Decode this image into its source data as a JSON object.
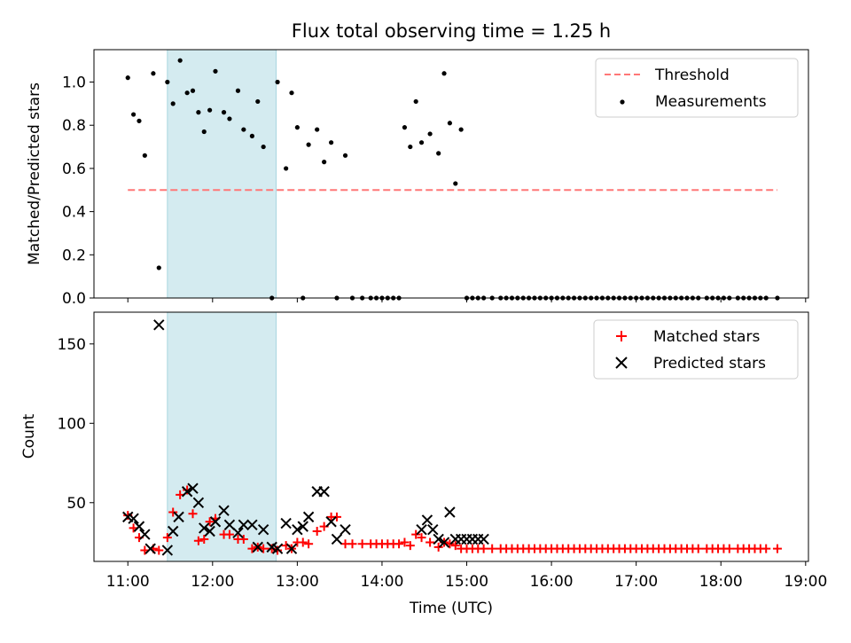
{
  "chart_data": [
    {
      "type": "scatter",
      "title": "Flux total observing time = 1.25 h",
      "xlabel": "",
      "ylabel": "Matched/Predicted stars",
      "xlim": [
        "10:36",
        "19:02"
      ],
      "ylim": [
        0,
        1.15
      ],
      "x_ticks": [
        "11:00",
        "12:00",
        "13:00",
        "14:00",
        "15:00",
        "16:00",
        "17:00",
        "18:00",
        "19:00"
      ],
      "y_ticks": [
        "0.0",
        "0.2",
        "0.4",
        "0.6",
        "0.8",
        "1.0"
      ],
      "y_tick_values": [
        0,
        0.2,
        0.4,
        0.6,
        0.8,
        1.0
      ],
      "shaded_interval": [
        "11:28",
        "12:45"
      ],
      "shaded_color": "#d4ebf0",
      "legend_position": "top-right",
      "threshold": {
        "name": "Threshold",
        "value": 0.5,
        "x_range": [
          "11:00",
          "18:40"
        ],
        "color": "#ff7777"
      },
      "series": [
        {
          "name": "Measurements",
          "color": "#000000",
          "x": [
            "11:00",
            "11:04",
            "11:08",
            "11:12",
            "11:18",
            "11:22",
            "11:28",
            "11:32",
            "11:37",
            "11:42",
            "11:46",
            "11:50",
            "11:54",
            "11:58",
            "12:02",
            "12:08",
            "12:12",
            "12:18",
            "12:22",
            "12:28",
            "12:32",
            "12:36",
            "12:42",
            "12:46",
            "12:52",
            "12:56",
            "13:00",
            "13:04",
            "13:08",
            "13:14",
            "13:19",
            "13:24",
            "13:28",
            "13:34",
            "13:39",
            "13:46",
            "13:52",
            "13:56",
            "14:00",
            "14:04",
            "14:08",
            "14:12",
            "14:16",
            "14:20",
            "14:24",
            "14:28",
            "14:34",
            "14:40",
            "14:44",
            "14:48",
            "14:52",
            "14:56",
            "15:00",
            "15:04",
            "15:08",
            "15:12",
            "15:18",
            "15:24",
            "15:28",
            "15:32",
            "15:36",
            "15:40",
            "15:44",
            "15:48",
            "15:52",
            "15:56",
            "16:00",
            "16:04",
            "16:08",
            "16:12",
            "16:16",
            "16:20",
            "16:24",
            "16:28",
            "16:32",
            "16:36",
            "16:40",
            "16:44",
            "16:48",
            "16:52",
            "16:56",
            "17:00",
            "17:04",
            "17:08",
            "17:12",
            "17:16",
            "17:20",
            "17:24",
            "17:28",
            "17:32",
            "17:36",
            "17:40",
            "17:44",
            "17:50",
            "17:54",
            "17:58",
            "18:02",
            "18:06",
            "18:12",
            "18:16",
            "18:20",
            "18:24",
            "18:28",
            "18:32",
            "18:40"
          ],
          "y": [
            1.02,
            0.85,
            0.82,
            0.66,
            1.04,
            0.14,
            1.0,
            0.9,
            1.1,
            0.95,
            0.96,
            0.86,
            0.77,
            0.87,
            1.05,
            0.86,
            0.83,
            0.96,
            0.78,
            0.75,
            0.91,
            0.7,
            0.0,
            1.0,
            0.6,
            0.95,
            0.79,
            0.0,
            0.71,
            0.78,
            0.63,
            0.72,
            0.0,
            0.66,
            0.0,
            0.0,
            0.0,
            0.0,
            0.0,
            0.0,
            0.0,
            0.0,
            0.79,
            0.7,
            0.91,
            0.72,
            0.76,
            0.67,
            1.04,
            0.81,
            0.53,
            0.78,
            0.0,
            0.0,
            0.0,
            0.0,
            0.0,
            0.0,
            0.0,
            0.0,
            0.0,
            0.0,
            0.0,
            0.0,
            0.0,
            0.0,
            0.0,
            0.0,
            0.0,
            0.0,
            0.0,
            0.0,
            0.0,
            0.0,
            0.0,
            0.0,
            0.0,
            0.0,
            0.0,
            0.0,
            0.0,
            0.0,
            0.0,
            0.0,
            0.0,
            0.0,
            0.0,
            0.0,
            0.0,
            0.0,
            0.0,
            0.0,
            0.0,
            0.0,
            0.0,
            0.0,
            0.0,
            0.0,
            0.0,
            0.0,
            0.0,
            0.0,
            0.0,
            0.0,
            0.0
          ]
        }
      ]
    },
    {
      "type": "scatter",
      "title": "",
      "xlabel": "Time (UTC)",
      "ylabel": "Count",
      "xlim": [
        "10:36",
        "19:02"
      ],
      "ylim": [
        13,
        170
      ],
      "x_ticks": [
        "11:00",
        "12:00",
        "13:00",
        "14:00",
        "15:00",
        "16:00",
        "17:00",
        "18:00",
        "19:00"
      ],
      "y_ticks": [
        "50",
        "100",
        "150"
      ],
      "y_tick_values": [
        50,
        100,
        150
      ],
      "shaded_interval": [
        "11:28",
        "12:45"
      ],
      "shaded_color": "#d4ebf0",
      "legend_position": "top-right",
      "series": [
        {
          "name": "Matched stars",
          "marker": "plus",
          "color": "#ff0000",
          "x": [
            "11:00",
            "11:04",
            "11:08",
            "11:12",
            "11:18",
            "11:22",
            "11:28",
            "11:32",
            "11:37",
            "11:42",
            "11:46",
            "11:50",
            "11:54",
            "11:58",
            "12:02",
            "12:08",
            "12:12",
            "12:18",
            "12:22",
            "12:28",
            "12:32",
            "12:36",
            "12:42",
            "12:46",
            "12:52",
            "12:56",
            "13:00",
            "13:04",
            "13:08",
            "13:14",
            "13:19",
            "13:24",
            "13:28",
            "13:34",
            "13:39",
            "13:46",
            "13:52",
            "13:56",
            "14:00",
            "14:04",
            "14:08",
            "14:12",
            "14:16",
            "14:20",
            "14:24",
            "14:28",
            "14:34",
            "14:40",
            "14:44",
            "14:48",
            "14:52",
            "14:56",
            "15:00",
            "15:04",
            "15:08",
            "15:12",
            "15:18",
            "15:24",
            "15:28",
            "15:32",
            "15:36",
            "15:40",
            "15:44",
            "15:48",
            "15:52",
            "15:56",
            "16:00",
            "16:04",
            "16:08",
            "16:12",
            "16:16",
            "16:20",
            "16:24",
            "16:28",
            "16:32",
            "16:36",
            "16:40",
            "16:44",
            "16:48",
            "16:52",
            "16:56",
            "17:00",
            "17:04",
            "17:08",
            "17:12",
            "17:16",
            "17:20",
            "17:24",
            "17:28",
            "17:32",
            "17:36",
            "17:40",
            "17:44",
            "17:50",
            "17:54",
            "17:58",
            "18:02",
            "18:06",
            "18:12",
            "18:16",
            "18:20",
            "18:24",
            "18:28",
            "18:32",
            "18:40"
          ],
          "y": [
            42,
            34,
            28,
            20,
            21,
            20,
            28,
            44,
            55,
            58,
            43,
            26,
            27,
            38,
            40,
            30,
            30,
            27,
            27,
            21,
            22,
            21,
            21,
            20,
            23,
            21,
            25,
            25,
            24,
            32,
            35,
            41,
            41,
            24,
            24,
            24,
            24,
            24,
            24,
            24,
            24,
            24,
            25,
            23,
            30,
            28,
            25,
            22,
            25,
            24,
            23,
            21,
            21,
            21,
            21,
            21,
            21,
            21,
            21,
            21,
            21,
            21,
            21,
            21,
            21,
            21,
            21,
            21,
            21,
            21,
            21,
            21,
            21,
            21,
            21,
            21,
            21,
            21,
            21,
            21,
            21,
            21,
            21,
            21,
            21,
            21,
            21,
            21,
            21,
            21,
            21,
            21,
            21,
            21,
            21,
            21,
            21,
            21,
            21,
            21,
            21,
            21,
            21,
            21,
            21
          ]
        },
        {
          "name": "Predicted stars",
          "marker": "x",
          "color": "#000000",
          "x": [
            "11:00",
            "11:04",
            "11:08",
            "11:12",
            "11:16",
            "11:22",
            "11:28",
            "11:32",
            "11:36",
            "11:42",
            "11:46",
            "11:50",
            "11:54",
            "11:58",
            "12:02",
            "12:08",
            "12:12",
            "12:18",
            "12:22",
            "12:28",
            "12:32",
            "12:36",
            "12:42",
            "12:46",
            "12:52",
            "12:56",
            "13:00",
            "13:04",
            "13:08",
            "13:14",
            "13:19",
            "13:24",
            "13:28",
            "13:34",
            "14:28",
            "14:32",
            "14:36",
            "14:40",
            "14:44",
            "14:48",
            "14:52",
            "14:56",
            "15:00",
            "15:04",
            "15:08",
            "15:12"
          ],
          "y": [
            41,
            40,
            35,
            30,
            21,
            162,
            20,
            32,
            41,
            57,
            59,
            50,
            34,
            32,
            38,
            45,
            36,
            31,
            36,
            36,
            22,
            33,
            22,
            21,
            37,
            21,
            33,
            35,
            41,
            57,
            57,
            38,
            27,
            33,
            33,
            39,
            33,
            27,
            25,
            44,
            27,
            27,
            27,
            27,
            27,
            27
          ]
        }
      ]
    }
  ]
}
